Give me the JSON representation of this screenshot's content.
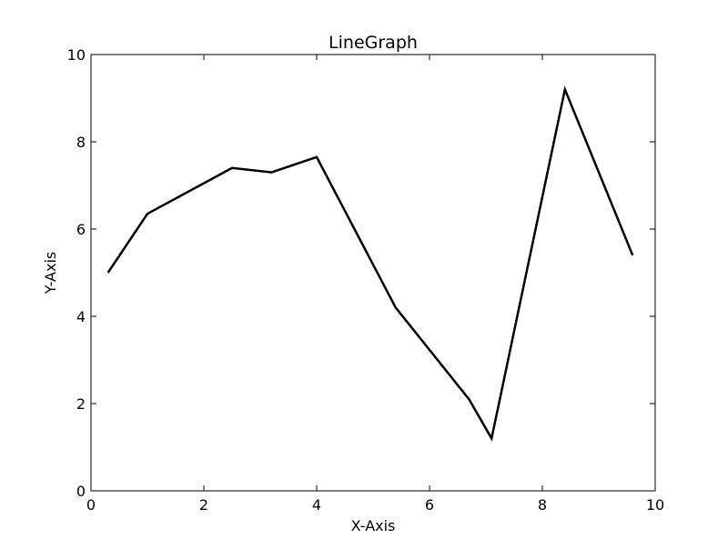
{
  "chart_data": {
    "type": "line",
    "title": "LineGraph",
    "xlabel": "X-Axis",
    "ylabel": "Y-Axis",
    "xlim": [
      0,
      10
    ],
    "ylim": [
      0,
      10
    ],
    "xticks": [
      "0",
      "2",
      "4",
      "6",
      "8",
      "10"
    ],
    "yticks": [
      "0",
      "2",
      "4",
      "6",
      "8",
      "10"
    ],
    "grid": false,
    "line_color": "#000000",
    "x": [
      0.3,
      1.0,
      2.5,
      3.2,
      4.0,
      5.4,
      6.7,
      7.1,
      8.4,
      9.6
    ],
    "y": [
      5.0,
      6.35,
      7.4,
      7.3,
      7.65,
      4.2,
      2.1,
      1.2,
      9.2,
      5.4
    ]
  }
}
